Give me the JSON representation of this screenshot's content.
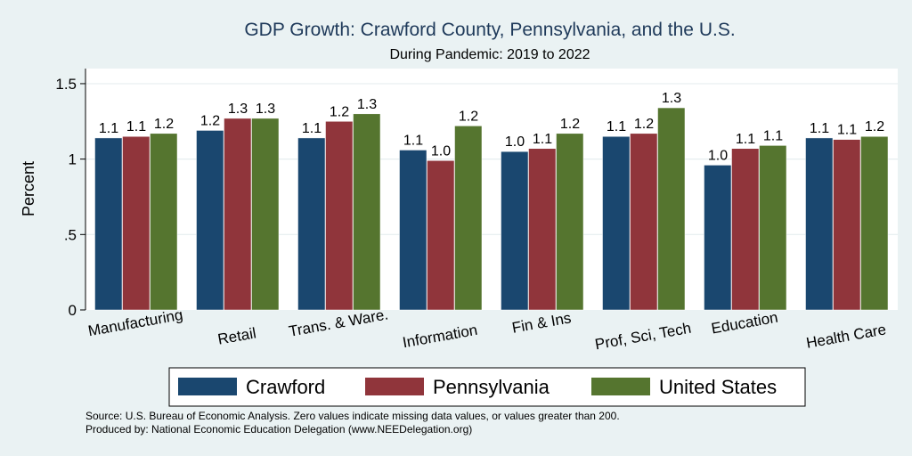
{
  "chart_data": {
    "type": "bar",
    "title": "GDP Growth: Crawford County, Pennsylvania, and the U.S.",
    "subtitle": "During Pandemic: 2019 to 2022",
    "xlabel": "",
    "ylabel": "Percent",
    "ylim": [
      0,
      1.6
    ],
    "yticks": [
      {
        "value": 0,
        "label": "0"
      },
      {
        "value": 0.5,
        "label": ".5"
      },
      {
        "value": 1,
        "label": "1"
      },
      {
        "value": 1.5,
        "label": "1.5"
      }
    ],
    "grid": true,
    "legend_position": "bottom",
    "categories": [
      "Manufacturing",
      "Retail",
      "Trans. & Ware.",
      "Information",
      "Fin & Ins",
      "Prof, Sci, Tech",
      "Education",
      "Health Care"
    ],
    "series": [
      {
        "name": "Crawford",
        "color": "#1a476f",
        "values": [
          1.14,
          1.19,
          1.14,
          1.06,
          1.05,
          1.15,
          0.96,
          1.14
        ],
        "labels": [
          "1.1",
          "1.2",
          "1.1",
          "1.1",
          "1.0",
          "1.1",
          "1.0",
          "1.1"
        ]
      },
      {
        "name": "Pennsylvania",
        "color": "#90353b",
        "values": [
          1.15,
          1.27,
          1.25,
          0.99,
          1.07,
          1.17,
          1.07,
          1.13
        ],
        "labels": [
          "1.1",
          "1.3",
          "1.2",
          "1.0",
          "1.1",
          "1.2",
          "1.1",
          "1.1"
        ]
      },
      {
        "name": "United States",
        "color": "#55752f",
        "values": [
          1.17,
          1.27,
          1.3,
          1.22,
          1.17,
          1.34,
          1.09,
          1.15
        ],
        "labels": [
          "1.2",
          "1.3",
          "1.3",
          "1.2",
          "1.2",
          "1.3",
          "1.1",
          "1.2"
        ]
      }
    ],
    "notes": [
      "Source: U.S. Bureau of Economic Analysis. Zero values indicate missing data values, or values greater than 200.",
      "Produced by: National Economic Education Delegation (www.NEEDelegation.org)"
    ]
  }
}
